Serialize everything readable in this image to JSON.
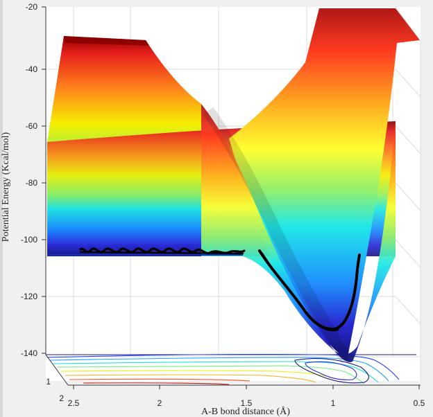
{
  "chart_data": {
    "type": "surface",
    "xlabel": "A-B bond distance (Å)",
    "ylabel": "Potential Energy (Kcal/mol)",
    "x_ticks": [
      "2.5",
      "2",
      "1.5",
      "1",
      "0.5"
    ],
    "y_ticks": [
      "-20",
      "-40",
      "-60",
      "-80",
      "-100",
      "-120",
      "-140"
    ],
    "depth_ticks": [
      "1",
      "2"
    ],
    "xlim": [
      0.5,
      2.5
    ],
    "ylim": [
      -145,
      -20
    ],
    "colormap": "jet",
    "trajectory_color": "#000000",
    "grid": true
  }
}
